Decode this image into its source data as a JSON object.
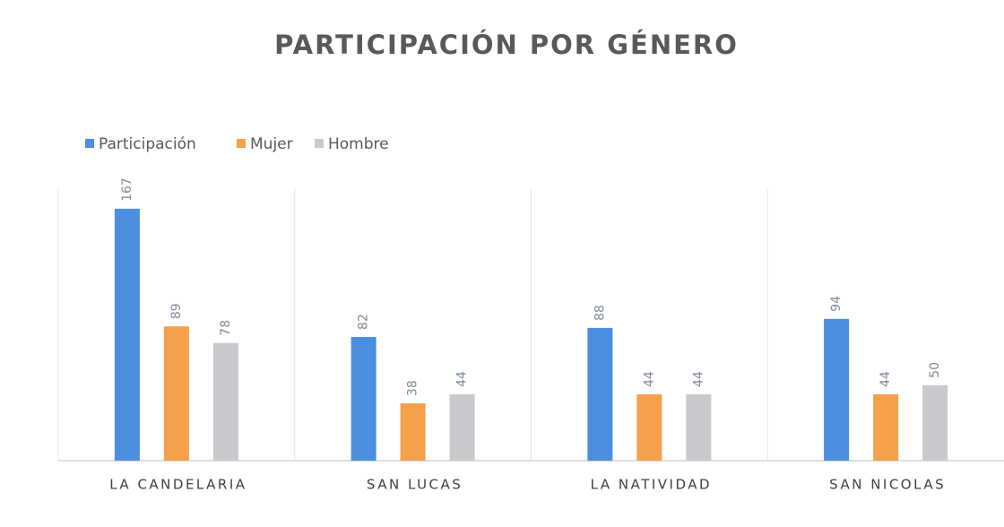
{
  "chart_data": {
    "type": "bar",
    "title": "PARTICIPACIÓN POR GÉNERO",
    "categories": [
      "LA CANDELARIA",
      "SAN LUCAS",
      "LA NATIVIDAD",
      "SAN NICOLAS"
    ],
    "series": [
      {
        "name": "Participación",
        "color": "#4a8fe0",
        "values": [
          167,
          82,
          88,
          94
        ]
      },
      {
        "name": "Mujer",
        "color": "#f5a04a",
        "values": [
          89,
          38,
          44,
          44
        ]
      },
      {
        "name": "Hombre",
        "color": "#c9c9ce",
        "values": [
          78,
          44,
          44,
          50
        ]
      }
    ],
    "ylim": [
      0,
      180
    ],
    "legend": "top-left"
  }
}
